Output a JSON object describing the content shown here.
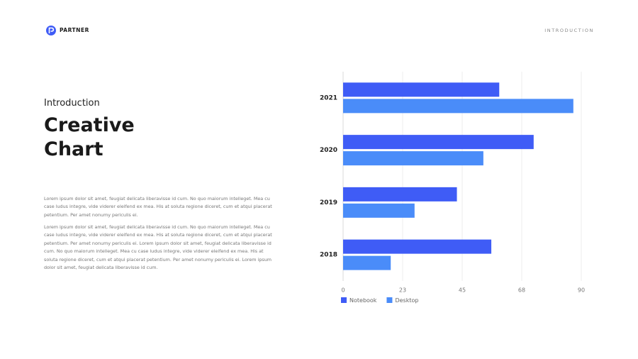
{
  "brand": "PARTNER",
  "section": "INTRODUCTION",
  "header": {
    "eyebrow": "Introduction",
    "title": "Creative Chart"
  },
  "paragraphs": [
    "Lorem ipsum dolor sit amet, feugiat delicata liberavisse id cum. No quo maiorum intelleget. Mea cu case ludus integre, vide viderer eleifend ex mea. His at soluta regione diceret, cum et atqui placerat petentium. Per amet nonumy periculis ei.",
    "Lorem ipsum dolor sit amet, feugiat delicata liberavisse id cum. No quo maiorum intelleget. Mea cu case ludus integre, vide viderer eleifend ex mea. His at soluta regione diceret, cum et atqui placerat petentium. Per amet nonumy periculis ei. Lorem ipsum dolor sit amet, feugiat delicata liberavisse id cum. No quo maiorum intelleget. Mea cu case ludus integre, vide viderer eleifend ex mea. His at soluta regione diceret, cum et atqui placerat petentium. Per amet nonumy periculis ei. Lorem ipsum dolor sit amet, feugiat delicata liberavisse id cum."
  ],
  "chart_data": {
    "type": "hbar",
    "categories": [
      "2021",
      "2020",
      "2019",
      "2018"
    ],
    "series": [
      {
        "name": "Notebook",
        "color": "#3f5cf6",
        "values": [
          59,
          72,
          43,
          56
        ]
      },
      {
        "name": "Desktop",
        "color": "#4a8cf9",
        "values": [
          87,
          53,
          27,
          18
        ]
      }
    ],
    "xlim": [
      0,
      90
    ],
    "xticks": [
      0,
      {
        "value": 22.5,
        "label": "23"
      },
      45,
      {
        "value": 67.5,
        "label": "68"
      },
      90
    ],
    "grid": true,
    "legend": "bottom-left"
  }
}
